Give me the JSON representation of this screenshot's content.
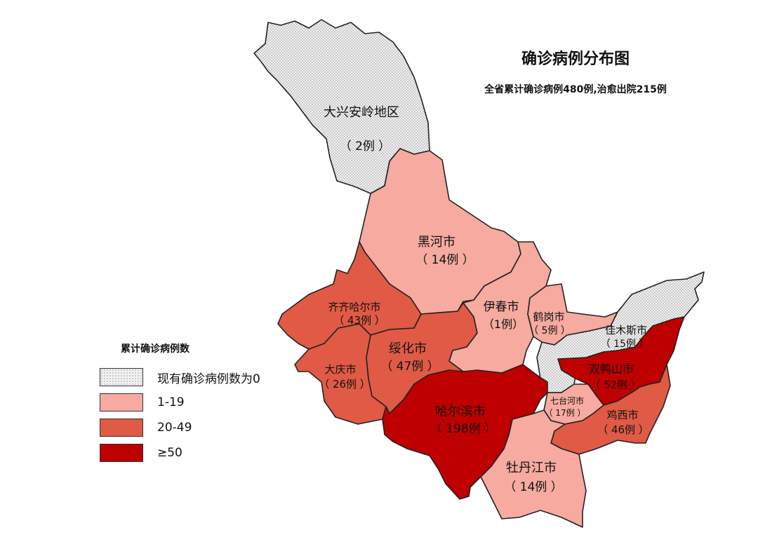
{
  "title": "确诊病例分布图",
  "subtitle": "全省累计确诊病例480例,治愈出院215例",
  "legend": {
    "title": "累计确诊病例数",
    "items": [
      {
        "label": "现有确诊病例数为0",
        "color": "#efefef",
        "pattern": "dots"
      },
      {
        "label": "1-19",
        "color": "#f6aaa0"
      },
      {
        "label": "20-49",
        "color": "#e05a45"
      },
      {
        "label": "≥50",
        "color": "#bf0000"
      }
    ]
  },
  "regions": {
    "daxinganling": {
      "name": "大兴安岭地区",
      "count": "（ 2例 ）",
      "cases": 2,
      "category": "现有确诊病例数为0"
    },
    "heihe": {
      "name": "黑河市",
      "count": "（ 14例 ）",
      "cases": 14,
      "category": "1-19"
    },
    "qiqihar": {
      "name": "齐齐哈尔市",
      "count": "（ 43例 ）",
      "cases": 43,
      "category": "20-49"
    },
    "daqing": {
      "name": "大庆市",
      "count": "（ 26例 ）",
      "cases": 26,
      "category": "20-49"
    },
    "suihua": {
      "name": "绥化市",
      "count": "（ 47例 ）",
      "cases": 47,
      "category": "20-49"
    },
    "harbin": {
      "name": "哈尔滨市",
      "count": "（ 198例 ）",
      "cases": 198,
      "category": "≥50"
    },
    "yichun": {
      "name": "伊春市",
      "count": "（1例）",
      "cases": 1,
      "category": "1-19"
    },
    "hegang": {
      "name": "鹤岗市",
      "count": "（ 5例 ）",
      "cases": 5,
      "category": "1-19"
    },
    "jiamusi": {
      "name": "佳木斯市",
      "count": "（ 15例 ）",
      "cases": 15,
      "category": "现有确诊病例数为0"
    },
    "shuangyashan": {
      "name": "双鸭山市",
      "count": "（ 52例 ）",
      "cases": 52,
      "category": "≥50"
    },
    "qitaihe": {
      "name": "七台河市",
      "count": "（ 17例 ）",
      "cases": 17,
      "category": "1-19"
    },
    "jixi": {
      "name": "鸡西市",
      "count": "（ 46例 ）",
      "cases": 46,
      "category": "20-49"
    },
    "mudanjiang": {
      "name": "牡丹江市",
      "count": "（ 14例 ）",
      "cases": 14,
      "category": "1-19"
    }
  }
}
